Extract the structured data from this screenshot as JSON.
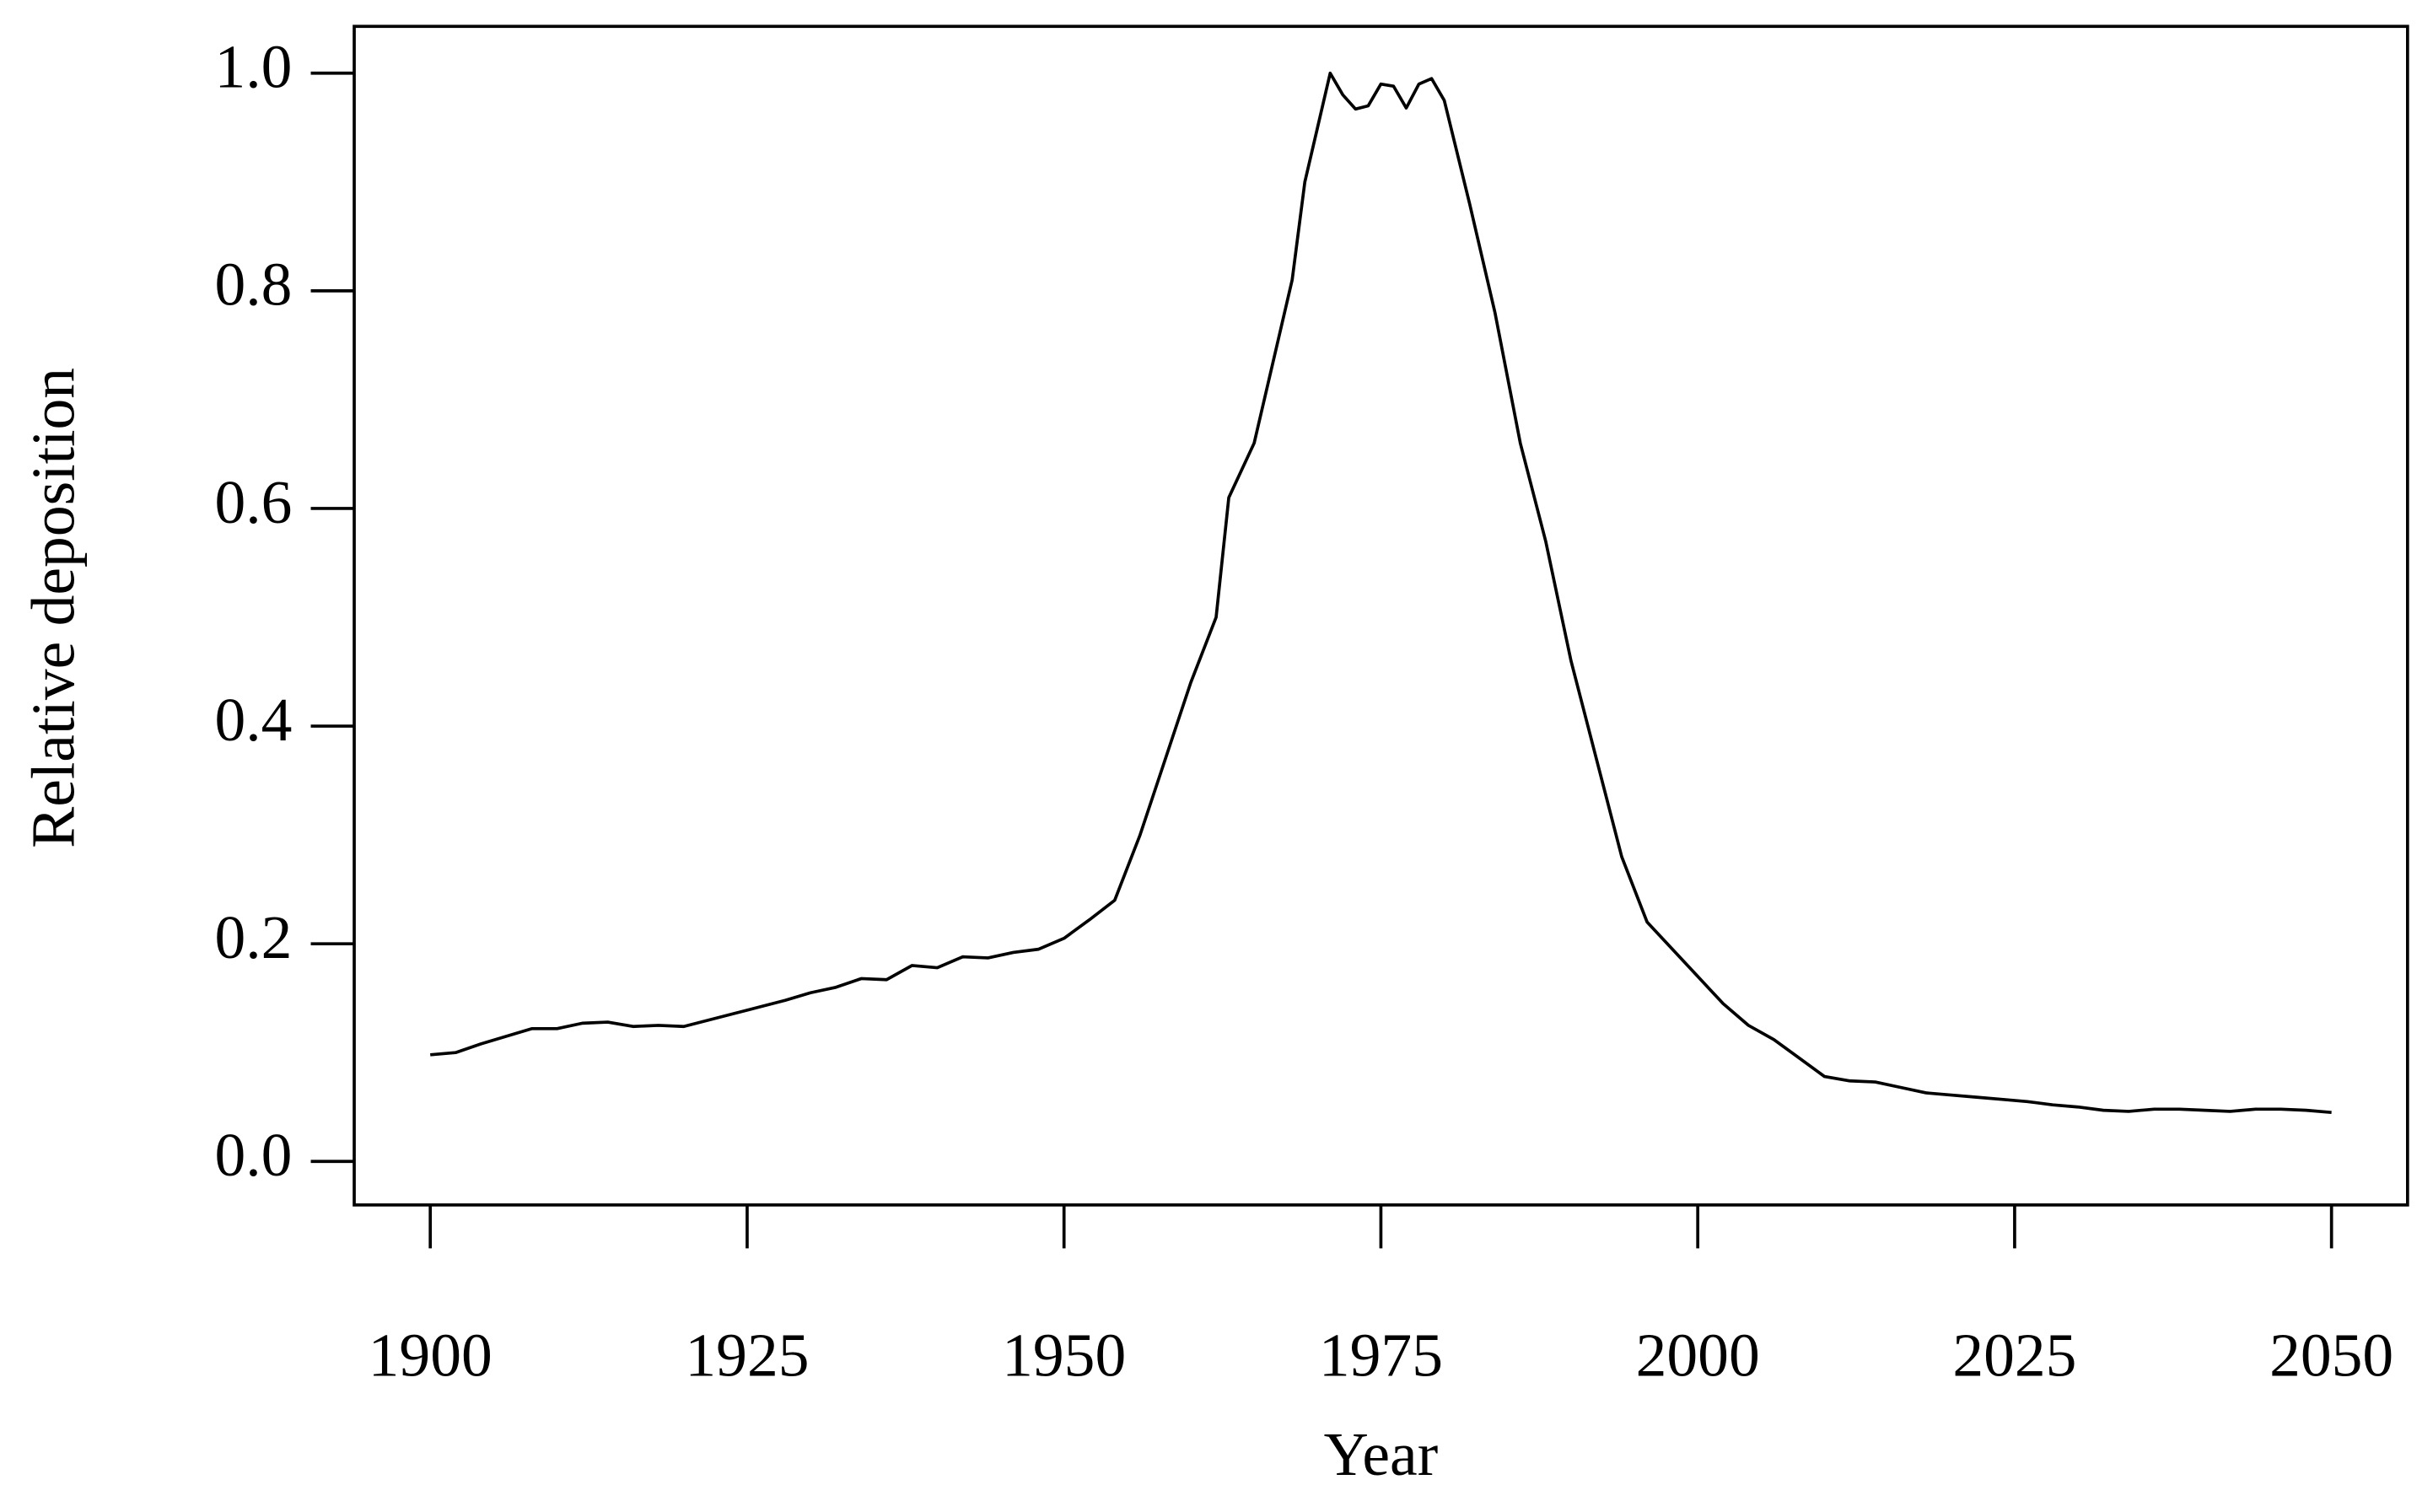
{
  "chart_data": {
    "type": "line",
    "x_label": "Year",
    "y_label": "Relative deposition",
    "x": [
      1900,
      1902,
      1904,
      1906,
      1908,
      1910,
      1912,
      1914,
      1916,
      1918,
      1920,
      1922,
      1924,
      1926,
      1928,
      1930,
      1932,
      1934,
      1936,
      1938,
      1940,
      1942,
      1944,
      1946,
      1948,
      1950,
      1952,
      1954,
      1956,
      1958,
      1960,
      1962,
      1963,
      1965,
      1967,
      1968,
      1969,
      1970,
      1971,
      1972,
      1973,
      1974,
      1975,
      1976,
      1977,
      1978,
      1979,
      1980,
      1982,
      1984,
      1986,
      1988,
      1990,
      1992,
      1994,
      1996,
      1998,
      2000,
      2002,
      2004,
      2006,
      2008,
      2010,
      2012,
      2014,
      2016,
      2018,
      2020,
      2022,
      2024,
      2026,
      2028,
      2030,
      2032,
      2034,
      2036,
      2038,
      2040,
      2042,
      2044,
      2046,
      2048,
      2050
    ],
    "series": [
      {
        "color": "#000000",
        "values": [
          0.098,
          0.1,
          0.108,
          0.115,
          0.122,
          0.122,
          0.127,
          0.128,
          0.124,
          0.125,
          0.124,
          0.13,
          0.136,
          0.142,
          0.148,
          0.155,
          0.16,
          0.168,
          0.167,
          0.18,
          0.178,
          0.188,
          0.187,
          0.192,
          0.195,
          0.205,
          0.222,
          0.24,
          0.3,
          0.37,
          0.44,
          0.5,
          0.61,
          0.66,
          0.76,
          0.81,
          0.9,
          0.95,
          1.0,
          0.98,
          0.967,
          0.97,
          0.99,
          0.988,
          0.968,
          0.99,
          0.995,
          0.975,
          0.88,
          0.78,
          0.66,
          0.57,
          0.46,
          0.37,
          0.28,
          0.22,
          0.195,
          0.17,
          0.145,
          0.125,
          0.112,
          0.095,
          0.078,
          0.074,
          0.073,
          0.068,
          0.063,
          0.061,
          0.059,
          0.057,
          0.055,
          0.052,
          0.05,
          0.047,
          0.046,
          0.048,
          0.048,
          0.047,
          0.046,
          0.048,
          0.048,
          0.047,
          0.045
        ]
      }
    ],
    "xlim": [
      1894,
      2056
    ],
    "ylim": [
      -0.04,
      1.043
    ],
    "xticks": [
      1900,
      1925,
      1950,
      1975,
      2000,
      2025,
      2050
    ],
    "yticks": [
      {
        "value": 0,
        "label": "0.0"
      },
      0.2,
      0.4,
      0.6,
      0.8,
      {
        "value": 1,
        "label": "1.0"
      }
    ]
  }
}
